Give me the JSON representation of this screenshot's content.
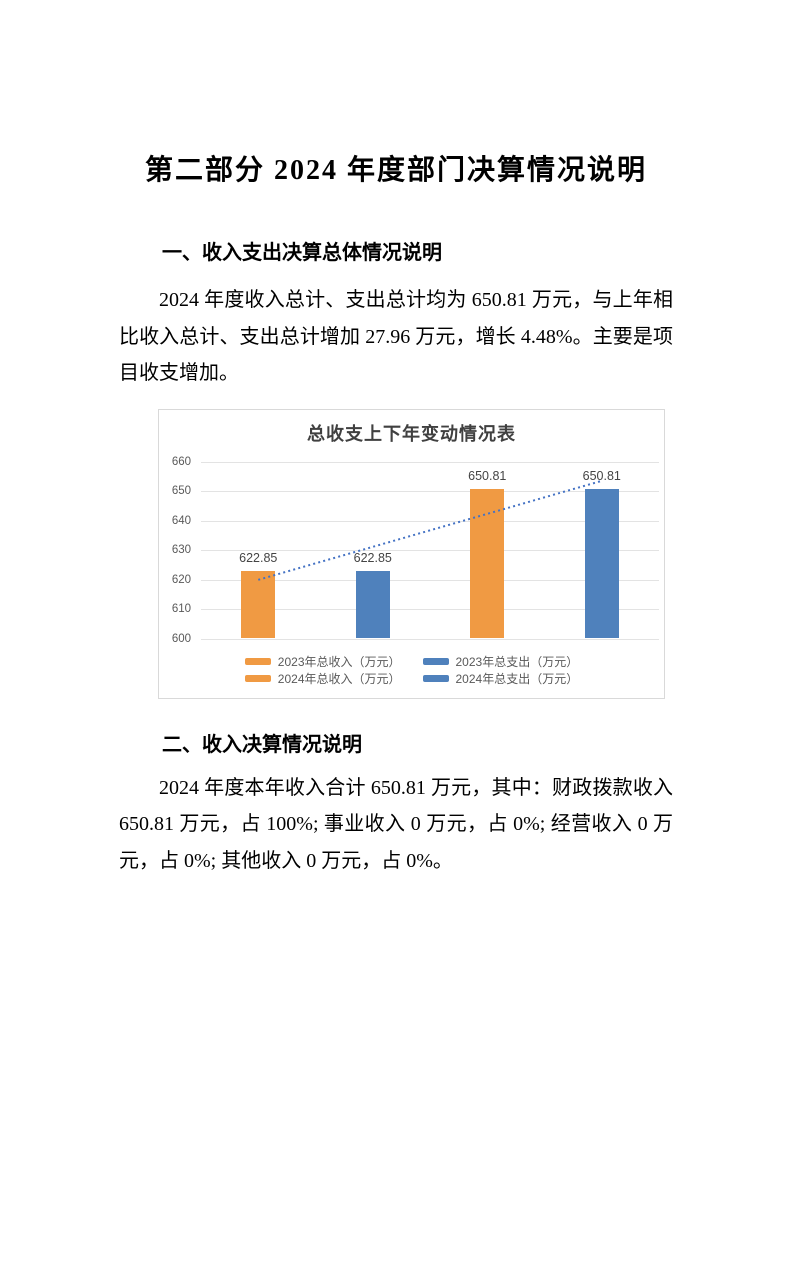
{
  "document": {
    "title": "第二部分 2024 年度部门决算情况说明",
    "section1": {
      "heading": "一、收入支出决算总体情况说明",
      "paragraph": "2024 年度收入总计、支出总计均为 650.81 万元，与上年相比收入总计、支出总计增加 27.96 万元，增长 4.48%。主要是项目收支增加。"
    },
    "section2": {
      "heading": "二、收入决算情况说明",
      "paragraph": "2024 年度本年收入合计 650.81 万元，其中：财政拨款收入 650.81 万元，占 100%; 事业收入 0 万元，占 0%; 经营收入 0 万元，占 0%; 其他收入 0 万元，占 0%。"
    }
  },
  "chart_data": {
    "type": "bar",
    "title": "总收支上下年变动情况表",
    "ylim": [
      600,
      660
    ],
    "yticks": [
      600,
      610,
      620,
      630,
      640,
      650,
      660
    ],
    "series": [
      {
        "name": "2023年总收入（万元）",
        "value": 622.85,
        "color": "#F09A43"
      },
      {
        "name": "2023年总支出（万元）",
        "value": 622.85,
        "color": "#4F81BC"
      },
      {
        "name": "2024年总收入（万元）",
        "value": 650.81,
        "color": "#F09A43"
      },
      {
        "name": "2024年总支出（万元）",
        "value": 650.81,
        "color": "#4F81BC"
      }
    ],
    "value_labels": [
      "622.85",
      "622.85",
      "650.81",
      "650.81"
    ],
    "trendline": {
      "type": "linear",
      "color": "#4472C4",
      "style": "dotted"
    },
    "legend_rows": [
      [
        0,
        1
      ],
      [
        2,
        3
      ]
    ],
    "legend_position": "bottom",
    "grid": true,
    "colors": {
      "grid": "#e3e3e3",
      "axis_text": "#595959",
      "chart_border": "#d9d9d9",
      "title_text": "#404040",
      "value_label_text": "#444444"
    }
  }
}
